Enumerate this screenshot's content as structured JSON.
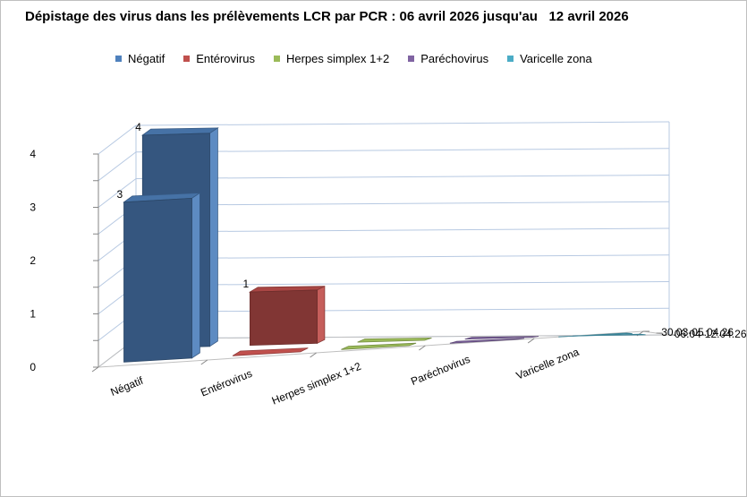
{
  "title": "Dépistage des virus dans les prélèvements LCR par PCR : 06 avril 2026 jusqu'au   12 avril 2026",
  "chart_data": {
    "type": "bar",
    "subtype": "3d-column",
    "title": "Dépistage des virus dans les prélèvements LCR par PCR : 06 avril 2026 jusqu'au   12 avril 2026",
    "categories": [
      "Négatif",
      "Entérovirus",
      "Herpes simplex 1+2",
      "Paréchovirus",
      "Varicelle zona"
    ],
    "depth_labels": [
      "30.03-05.04.26",
      "06.04-12.04.26"
    ],
    "series": [
      {
        "name": "30.03-05.04.26",
        "values": [
          3,
          0,
          0,
          0,
          0
        ]
      },
      {
        "name": "06.04-12.04.26",
        "values": [
          4,
          1,
          0,
          0,
          0
        ]
      }
    ],
    "colors": {
      "Négatif": "#4f81bd",
      "Entérovirus": "#c0504d",
      "Herpes simplex 1+2": "#9bbb59",
      "Paréchovirus": "#8064a2",
      "Varicelle zona": "#4bacc6"
    },
    "ylim": [
      0,
      4
    ],
    "yticks": [
      0,
      1,
      2,
      3,
      4
    ],
    "grid": true,
    "legend_position": "top",
    "xlabel": "",
    "ylabel": ""
  }
}
